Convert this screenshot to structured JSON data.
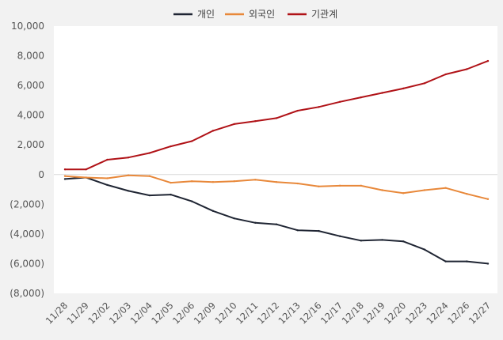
{
  "chart_data": {
    "type": "line",
    "categories": [
      "11/28",
      "11/29",
      "12/02",
      "12/03",
      "12/04",
      "12/05",
      "12/06",
      "12/09",
      "12/10",
      "12/11",
      "12/12",
      "12/13",
      "12/16",
      "12/17",
      "12/18",
      "12/19",
      "12/20",
      "12/23",
      "12/24",
      "12/26",
      "12/27"
    ],
    "series": [
      {
        "name": "개인",
        "color": "#1f2533",
        "values": [
          -300,
          -200,
          -700,
          -1100,
          -1400,
          -1350,
          -1800,
          -2450,
          -2950,
          -3250,
          -3350,
          -3750,
          -3800,
          -4150,
          -4450,
          -4400,
          -4500,
          -5050,
          -5850,
          -5850,
          -6000
        ]
      },
      {
        "name": "외국인",
        "color": "#e8883a",
        "values": [
          -100,
          -200,
          -250,
          -50,
          -100,
          -550,
          -450,
          -500,
          -450,
          -350,
          -500,
          -600,
          -800,
          -750,
          -750,
          -1050,
          -1250,
          -1050,
          -900,
          -1300,
          -1650
        ]
      },
      {
        "name": "기관계",
        "color": "#b01217",
        "values": [
          350,
          350,
          1000,
          1150,
          1450,
          1900,
          2250,
          2950,
          3400,
          3600,
          3800,
          4300,
          4550,
          4900,
          5200,
          5500,
          5800,
          6150,
          6750,
          7100,
          7650
        ]
      }
    ],
    "ylim": [
      -8000,
      10000
    ],
    "yticks": [
      10000,
      8000,
      6000,
      4000,
      2000,
      0,
      -2000,
      -4000,
      -6000,
      -8000
    ],
    "ytick_labels": [
      "10,000",
      "8,000",
      "6,000",
      "4,000",
      "2,000",
      "0",
      "(2,000)",
      "(4,000)",
      "(6,000)",
      "(8,000)"
    ],
    "grid": false,
    "zero_line": true,
    "legend_position": "top-center",
    "title": "",
    "xlabel": "",
    "ylabel": ""
  }
}
